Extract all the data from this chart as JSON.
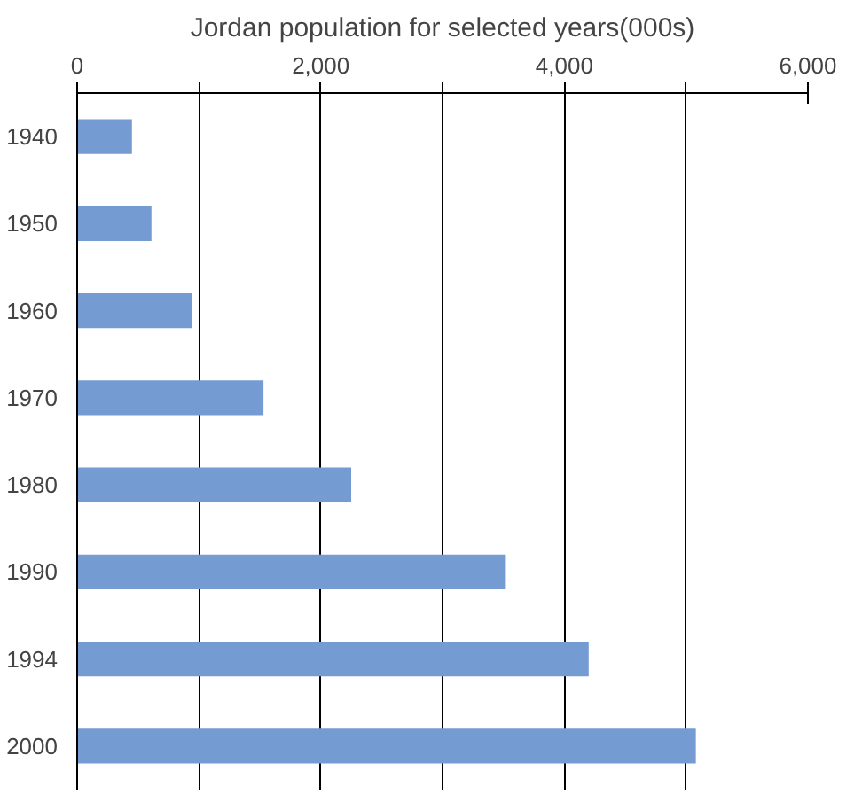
{
  "chart_data": {
    "type": "bar",
    "orientation": "horizontal",
    "title": "Jordan population for selected years(000s)",
    "categories": [
      "1940",
      "1950",
      "1960",
      "1970",
      "1980",
      "1990",
      "1994",
      "2000"
    ],
    "values": [
      450,
      610,
      940,
      1530,
      2250,
      3520,
      4200,
      5080
    ],
    "color": "#759bd3",
    "xlim": [
      0,
      6000
    ],
    "xticks": [
      0,
      {
        "value": 1000,
        "label": null
      },
      {
        "value": 2000,
        "label": "2,000"
      },
      {
        "value": 3000,
        "label": null
      },
      {
        "value": 4000,
        "label": "4,000"
      },
      {
        "value": 5000,
        "label": null
      },
      {
        "value": 6000,
        "label": "6,000"
      }
    ],
    "grid": "x"
  }
}
